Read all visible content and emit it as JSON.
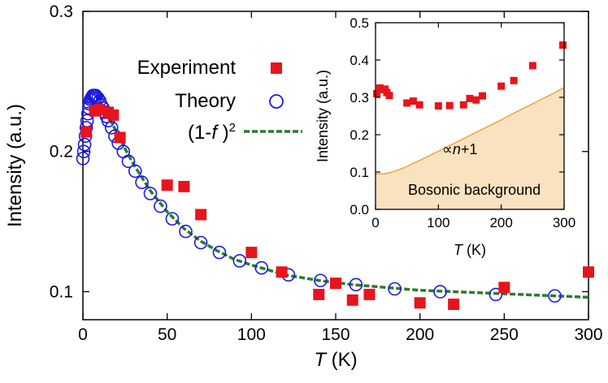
{
  "chart_data": [
    {
      "type": "scatter",
      "xlabel": "T (K)",
      "ylabel": "Intensity (a.u.)",
      "xlim": [
        0,
        300
      ],
      "ylim": [
        0.08,
        0.3
      ],
      "xticks": [
        "0",
        "50",
        "100",
        "150",
        "200",
        "250",
        "300"
      ],
      "yticks": [
        "0.1",
        "0.2",
        "0.3"
      ],
      "grid": false,
      "legend_position": "top-center",
      "legend": [
        "Experiment",
        "Theory",
        "(1-f)2"
      ],
      "series": [
        {
          "name": "Experiment",
          "marker": "filled-square",
          "color": "#e8141b",
          "x": [
            2,
            7,
            10,
            15,
            18,
            22,
            50,
            60,
            70,
            100,
            118,
            140,
            150,
            160,
            170,
            200,
            220,
            250,
            300
          ],
          "y": [
            0.214,
            0.229,
            0.23,
            0.228,
            0.226,
            0.21,
            0.176,
            0.175,
            0.155,
            0.128,
            0.114,
            0.098,
            0.106,
            0.094,
            0.098,
            0.092,
            0.091,
            0.103,
            0.114
          ]
        },
        {
          "name": "Theory",
          "marker": "open-circle",
          "color": "#1a1adf",
          "x": [
            0,
            0.5,
            1,
            1.5,
            2,
            2.5,
            3,
            3.5,
            4,
            4.5,
            5,
            5.5,
            6,
            6.5,
            7,
            7.5,
            8,
            9,
            10,
            11,
            12,
            13,
            14,
            15,
            17,
            19,
            21,
            24,
            27,
            31,
            35,
            40,
            46,
            53,
            61,
            70,
            81,
            93,
            106,
            122,
            141,
            162,
            185,
            212,
            245,
            280
          ],
          "y": [
            0.195,
            0.2,
            0.205,
            0.211,
            0.217,
            0.222,
            0.227,
            0.231,
            0.234,
            0.237,
            0.238,
            0.239,
            0.24,
            0.24,
            0.24,
            0.24,
            0.239,
            0.238,
            0.236,
            0.233,
            0.231,
            0.228,
            0.225,
            0.222,
            0.217,
            0.211,
            0.206,
            0.2,
            0.193,
            0.186,
            0.178,
            0.17,
            0.161,
            0.152,
            0.143,
            0.135,
            0.128,
            0.122,
            0.117,
            0.112,
            0.108,
            0.105,
            0.102,
            0.1,
            0.098,
            0.097
          ]
        },
        {
          "name": "(1-f)2",
          "style": "dashed-line",
          "color": "#2d7a2d",
          "x": [
            5,
            7,
            10,
            15,
            20,
            25,
            30,
            40,
            50,
            60,
            70,
            80,
            90,
            100,
            120,
            140,
            160,
            180,
            200,
            220,
            240,
            260,
            280,
            300
          ],
          "y": [
            0.23,
            0.232,
            0.231,
            0.225,
            0.214,
            0.202,
            0.191,
            0.172,
            0.157,
            0.145,
            0.136,
            0.129,
            0.123,
            0.119,
            0.112,
            0.108,
            0.105,
            0.103,
            0.101,
            0.1,
            0.099,
            0.098,
            0.097,
            0.096
          ]
        }
      ]
    },
    {
      "type": "scatter",
      "position": "inset top-right",
      "xlabel": "T (K)",
      "ylabel": "Intensity (a.u.)",
      "xlim": [
        0,
        300
      ],
      "ylim": [
        0,
        0.5
      ],
      "xticks": [
        "0",
        "100",
        "200",
        "300"
      ],
      "yticks": [
        "0.0",
        "0.1",
        "0.2",
        "0.3",
        "0.4",
        "0.5"
      ],
      "annotations": [
        "∝n+1",
        "Bosonic background"
      ],
      "series": [
        {
          "marker": "filled-square",
          "color": "#e8141b",
          "x": [
            2,
            7,
            10,
            15,
            18,
            22,
            50,
            60,
            70,
            100,
            118,
            140,
            150,
            160,
            170,
            200,
            220,
            250,
            298
          ],
          "y": [
            0.31,
            0.325,
            0.321,
            0.322,
            0.313,
            0.305,
            0.285,
            0.29,
            0.28,
            0.277,
            0.278,
            0.28,
            0.297,
            0.293,
            0.304,
            0.33,
            0.345,
            0.385,
            0.44
          ]
        },
        {
          "style": "filled-area-line",
          "color": "#f0a030",
          "fill": "#fae2c0",
          "x": [
            0,
            10,
            20,
            30,
            40,
            50,
            60,
            80,
            100,
            125,
            150,
            175,
            200,
            225,
            250,
            275,
            300
          ],
          "y": [
            0.095,
            0.095,
            0.097,
            0.102,
            0.108,
            0.115,
            0.123,
            0.139,
            0.156,
            0.177,
            0.198,
            0.219,
            0.24,
            0.262,
            0.283,
            0.304,
            0.326
          ]
        }
      ]
    }
  ]
}
